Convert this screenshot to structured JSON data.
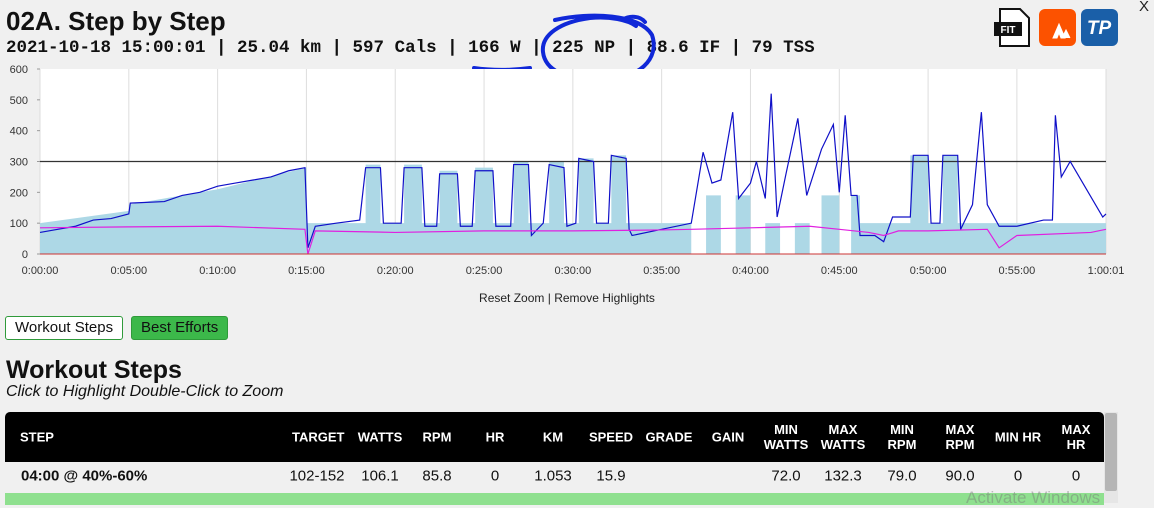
{
  "header": {
    "title": "02A. Step by Step",
    "summary": "2021-10-18 15:00:01 | 25.04 km | 597 Cals | 166 W | 225 NP | 88.6 IF | 79 TSS",
    "close": "X",
    "icons": [
      "FIT",
      "TP"
    ]
  },
  "chart_data": {
    "type": "line",
    "ylim": [
      0,
      600
    ],
    "yticks": [
      0,
      100,
      200,
      300,
      400,
      500,
      600
    ],
    "xlim": [
      0,
      3601
    ],
    "xticks": [
      {
        "value": 0,
        "label": "0:00:00"
      },
      {
        "value": 300,
        "label": "0:05:00"
      },
      {
        "value": 600,
        "label": "0:10:00"
      },
      {
        "value": 900,
        "label": "0:15:00"
      },
      {
        "value": 1200,
        "label": "0:20:00"
      },
      {
        "value": 1500,
        "label": "0:25:00"
      },
      {
        "value": 1800,
        "label": "0:30:00"
      },
      {
        "value": 2100,
        "label": "0:35:00"
      },
      {
        "value": 2400,
        "label": "0:40:00"
      },
      {
        "value": 2700,
        "label": "0:45:00"
      },
      {
        "value": 3000,
        "label": "0:50:00"
      },
      {
        "value": 3300,
        "label": "0:55:00"
      },
      {
        "value": 3601,
        "label": "1:00:01"
      }
    ],
    "grid": true,
    "ftp": 300,
    "series": [
      {
        "name": "Power",
        "kind": "line",
        "color": "#1010c8",
        "x": [
          0,
          60,
          120,
          180,
          240,
          300,
          305,
          420,
          480,
          540,
          600,
          660,
          720,
          780,
          840,
          895,
          905,
          930,
          1000,
          1080,
          1100,
          1150,
          1160,
          1220,
          1230,
          1290,
          1300,
          1340,
          1350,
          1410,
          1420,
          1460,
          1470,
          1530,
          1540,
          1590,
          1600,
          1650,
          1660,
          1700,
          1720,
          1770,
          1780,
          1810,
          1820,
          1870,
          1880,
          1920,
          1930,
          1980,
          1990,
          2000,
          2100,
          2200,
          2240,
          2270,
          2300,
          2340,
          2360,
          2400,
          2420,
          2450,
          2470,
          2490,
          2520,
          2560,
          2590,
          2640,
          2680,
          2700,
          2720,
          2740,
          2760,
          2770,
          2820,
          2850,
          2880,
          2940,
          2950,
          3000,
          3010,
          3040,
          3050,
          3100,
          3110,
          3150,
          3180,
          3200,
          3240,
          3300,
          3390,
          3420,
          3430,
          3450,
          3480,
          3590,
          3601
        ],
        "values": [
          70,
          80,
          90,
          110,
          115,
          130,
          165,
          170,
          190,
          200,
          220,
          230,
          240,
          250,
          270,
          280,
          20,
          90,
          100,
          110,
          280,
          280,
          100,
          100,
          280,
          280,
          90,
          90,
          260,
          260,
          90,
          90,
          270,
          270,
          90,
          90,
          290,
          290,
          60,
          100,
          290,
          280,
          90,
          100,
          310,
          300,
          100,
          100,
          320,
          310,
          80,
          60,
          80,
          100,
          330,
          230,
          240,
          460,
          180,
          230,
          300,
          180,
          520,
          120,
          260,
          440,
          190,
          340,
          420,
          200,
          450,
          190,
          190,
          60,
          60,
          40,
          120,
          120,
          320,
          320,
          100,
          100,
          320,
          320,
          80,
          160,
          460,
          160,
          90,
          90,
          110,
          110,
          450,
          250,
          300,
          120,
          130
        ]
      },
      {
        "name": "Cadence",
        "kind": "line",
        "color": "#e020e0",
        "x": [
          0,
          300,
          600,
          895,
          905,
          930,
          1200,
          1500,
          1800,
          2100,
          2200,
          2400,
          2600,
          2700,
          2800,
          2850,
          2900,
          3000,
          3200,
          3240,
          3300,
          3550,
          3601
        ],
        "values": [
          85,
          88,
          90,
          80,
          0,
          75,
          70,
          75,
          75,
          78,
          80,
          85,
          90,
          80,
          70,
          60,
          75,
          75,
          80,
          20,
          60,
          70,
          80
        ]
      },
      {
        "name": "Target",
        "kind": "area",
        "color": "#add8e6",
        "x": [
          0,
          300,
          300,
          600,
          900,
          900,
          1100,
          1100,
          1150,
          1150,
          1230,
          1230,
          1290,
          1290,
          1350,
          1350,
          1410,
          1410,
          1470,
          1470,
          1530,
          1530,
          1600,
          1600,
          1650,
          1650,
          1720,
          1720,
          1770,
          1770,
          1820,
          1820,
          1870,
          1870,
          1930,
          1930,
          1980,
          1980,
          2200,
          2200,
          2250,
          2250,
          2300,
          2300,
          2350,
          2350,
          2400,
          2400,
          2450,
          2450,
          2500,
          2500,
          2550,
          2550,
          2600,
          2600,
          2640,
          2640,
          2700,
          2700,
          2740,
          2740,
          2770,
          2770,
          2940,
          2940,
          3000,
          3000,
          3050,
          3050,
          3100,
          3100,
          3601
        ],
        "values": [
          100,
          140,
          160,
          210,
          280,
          100,
          100,
          290,
          290,
          100,
          100,
          290,
          290,
          100,
          100,
          270,
          270,
          100,
          100,
          280,
          280,
          100,
          100,
          300,
          300,
          100,
          100,
          300,
          300,
          100,
          100,
          310,
          310,
          100,
          100,
          320,
          320,
          100,
          100,
          0,
          0,
          190,
          190,
          0,
          0,
          190,
          190,
          0,
          0,
          100,
          100,
          0,
          0,
          100,
          100,
          0,
          0,
          190,
          190,
          0,
          0,
          190,
          190,
          100,
          100,
          320,
          320,
          100,
          100,
          320,
          320,
          100,
          100
        ]
      }
    ]
  },
  "zoom_links": [
    "Reset Zoom",
    "|",
    "Remove Highlights"
  ],
  "tabs": [
    "Workout Steps",
    "Best Efforts"
  ],
  "steps": {
    "title": "Workout Steps",
    "hint": "Click to Highlight  Double-Click to Zoom",
    "columns": [
      "STEP",
      "TARGET",
      "WATTS",
      "RPM",
      "HR",
      "KM",
      "SPEED",
      "GRADE",
      "GAIN",
      "MIN WATTS",
      "MAX WATTS",
      "MIN RPM",
      "MAX RPM",
      "MIN HR",
      "MAX HR"
    ],
    "rows": [
      [
        "04:00 @ 40%-60%",
        "102-152",
        "106.1",
        "85.8",
        "0",
        "1.053",
        "15.9",
        null,
        null,
        "72.0",
        "132.3",
        "79.0",
        "90.0",
        "0",
        "0"
      ]
    ]
  },
  "watermark": "Activate Windows"
}
